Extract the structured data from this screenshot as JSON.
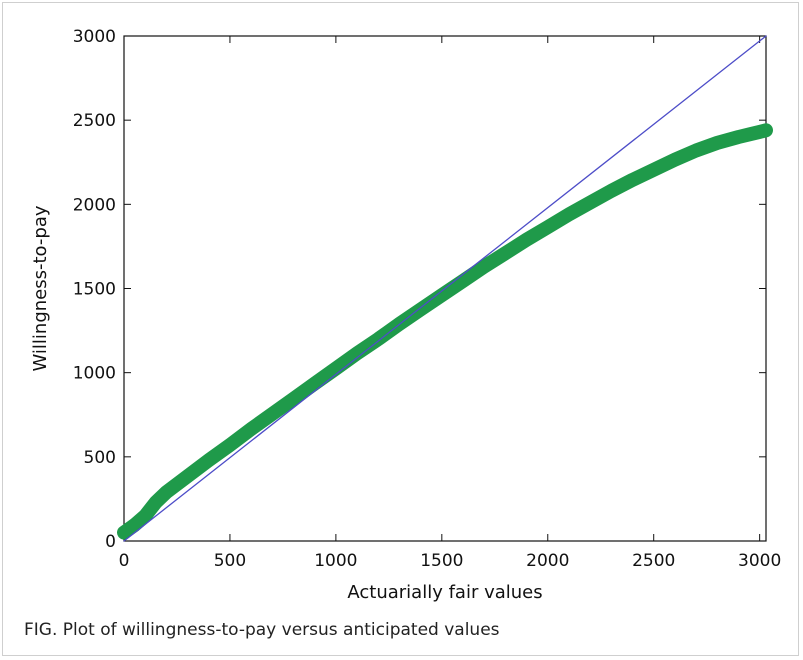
{
  "figure": {
    "caption": "FIG.  Plot of willingness-to-pay versus anticipated values"
  },
  "chart_data": {
    "type": "line",
    "xlabel": "Actuarially fair values",
    "ylabel": "Willingness-to-pay",
    "xlim": [
      0,
      3030
    ],
    "ylim": [
      0,
      3000
    ],
    "xticks": [
      0,
      500,
      1000,
      1500,
      2000,
      2500,
      3000
    ],
    "yticks": [
      0,
      500,
      1000,
      1500,
      2000,
      2500,
      3000
    ],
    "grid": false,
    "legend": "none",
    "series": [
      {
        "color": "#1f9a4a",
        "style": "thick",
        "x": [
          0,
          50,
          100,
          150,
          200,
          300,
          400,
          500,
          600,
          700,
          800,
          900,
          1000,
          1100,
          1200,
          1300,
          1400,
          1500,
          1600,
          1700,
          1800,
          1900,
          2000,
          2100,
          2200,
          2300,
          2400,
          2500,
          2600,
          2700,
          2800,
          2900,
          3000,
          3030
        ],
        "y": [
          50,
          95,
          150,
          230,
          290,
          385,
          480,
          570,
          665,
          755,
          845,
          935,
          1025,
          1115,
          1200,
          1290,
          1375,
          1460,
          1545,
          1630,
          1710,
          1790,
          1865,
          1940,
          2010,
          2080,
          2145,
          2205,
          2265,
          2320,
          2365,
          2400,
          2430,
          2440
        ]
      },
      {
        "color": "#4d4dc8",
        "style": "thin",
        "x": [
          0,
          3030
        ],
        "y": [
          0,
          3000
        ]
      }
    ]
  }
}
